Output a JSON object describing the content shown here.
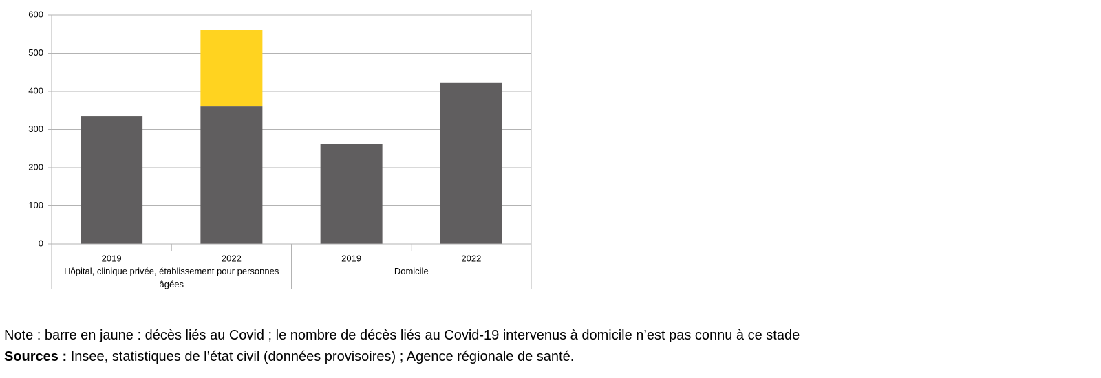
{
  "chart_data": {
    "type": "bar",
    "stacked": true,
    "groups": [
      {
        "label": "Hôpital, clinique privée, établissement pour personnes âgées",
        "categories": [
          "2019",
          "2022"
        ]
      },
      {
        "label": "Domicile",
        "categories": [
          "2019",
          "2022"
        ]
      }
    ],
    "series": [
      {
        "color": "#605e5f",
        "values": [
          335,
          362,
          263,
          422
        ]
      },
      {
        "color": "#ffd320",
        "values": [
          null,
          200,
          null,
          null
        ]
      }
    ],
    "ylim": [
      0,
      600
    ],
    "yticks": [
      0,
      100,
      200,
      300,
      400,
      500,
      600
    ],
    "grid": true,
    "note": "Note : barre en jaune : décès liés au Covid ; le nombre de décès liés au Covid-19 intervenus à domicile n’est pas connu à ce stade",
    "source_label": "Sources :",
    "source_text": "Insee, statistiques de l’état civil (données provisoires) ; Agence régionale de santé."
  }
}
